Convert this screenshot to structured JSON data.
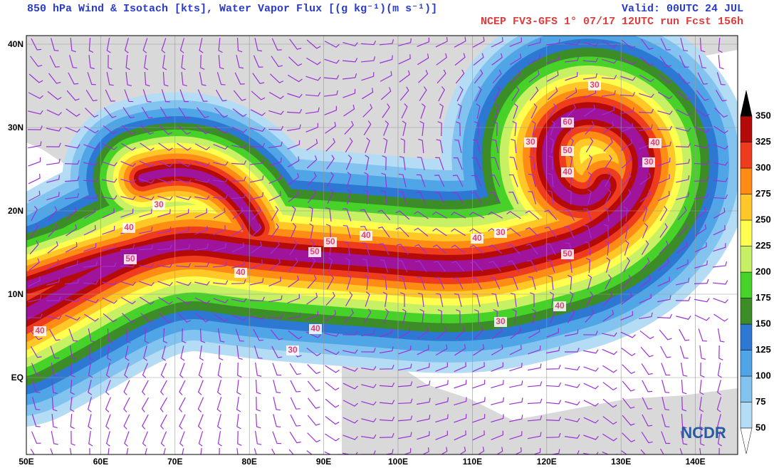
{
  "header": {
    "title": "850 hPa  Wind & Isotach [kts], Water Vapor Flux [(g kg⁻¹)(m s⁻¹)]",
    "valid": "Valid: 00UTC 24 JUL",
    "run": "NCEP FV3-GFS 1°  07/17 12UTC run  Fcst 156h"
  },
  "map": {
    "lon_labels": [
      "50E",
      "60E",
      "70E",
      "80E",
      "90E",
      "100E",
      "110E",
      "120E",
      "130E",
      "140E"
    ],
    "lat_labels": [
      "40N",
      "30N",
      "20N",
      "10N",
      "EQ"
    ],
    "contour_labels": [
      30,
      60,
      50,
      40,
      30,
      40,
      30,
      30,
      40,
      50,
      50,
      40,
      50,
      40,
      40,
      30,
      50,
      40,
      30,
      40,
      30,
      40
    ]
  },
  "colorbar": {
    "levels": [
      50,
      75,
      100,
      125,
      150,
      175,
      200,
      225,
      250,
      275,
      300,
      325,
      350
    ],
    "colors": [
      "#b4dcf5",
      "#82c3f0",
      "#50a5e6",
      "#2d78d2",
      "#3c8c28",
      "#46d228",
      "#c8f064",
      "#ffff50",
      "#ffc828",
      "#ff8c14",
      "#f03c1e",
      "#b40a0a",
      "#a0149b"
    ]
  },
  "logo": "NCDR"
}
